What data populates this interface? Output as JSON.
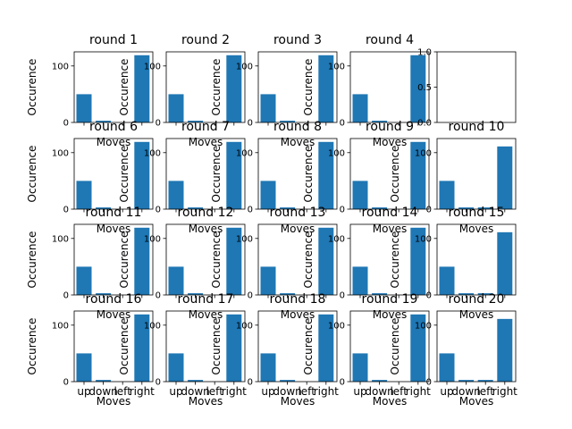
{
  "chart_data": {
    "type": "bar",
    "layout": {
      "rows": 4,
      "cols": 5
    },
    "bar_color": "#1f77b4",
    "ylim": [
      0,
      125
    ],
    "yticks": [
      0,
      100
    ],
    "categories": [
      "up",
      "down",
      "left",
      "right"
    ],
    "xlabel": "Moves",
    "ylabel": "Occurence",
    "panels": [
      {
        "title": "round 1",
        "values": [
          50,
          3,
          0,
          119
        ]
      },
      {
        "title": "round 2",
        "values": [
          50,
          3,
          0,
          119
        ]
      },
      {
        "title": "round 3",
        "values": [
          50,
          3,
          0,
          119
        ]
      },
      {
        "title": "round 4",
        "values": [
          50,
          3,
          0,
          119
        ]
      },
      {
        "title": "",
        "empty": true,
        "ylim": [
          0,
          1
        ],
        "yticks": [
          "0.0",
          "0.5",
          "1.0"
        ]
      },
      {
        "title": "round 6",
        "values": [
          50,
          3,
          0,
          119
        ]
      },
      {
        "title": "round 7",
        "values": [
          50,
          3,
          0,
          119
        ]
      },
      {
        "title": "round 8",
        "values": [
          50,
          3,
          0,
          119
        ]
      },
      {
        "title": "round 9",
        "values": [
          50,
          3,
          0,
          119
        ]
      },
      {
        "title": "round 10",
        "values": [
          50,
          3,
          3,
          111
        ]
      },
      {
        "title": "round 11",
        "values": [
          50,
          3,
          0,
          119
        ]
      },
      {
        "title": "round 12",
        "values": [
          50,
          3,
          0,
          119
        ]
      },
      {
        "title": "round 13",
        "values": [
          50,
          3,
          0,
          119
        ]
      },
      {
        "title": "round 14",
        "values": [
          50,
          3,
          0,
          119
        ]
      },
      {
        "title": "round 15",
        "values": [
          50,
          3,
          3,
          111
        ]
      },
      {
        "title": "round 16",
        "values": [
          50,
          3,
          0,
          119
        ]
      },
      {
        "title": "round 17",
        "values": [
          50,
          3,
          0,
          119
        ]
      },
      {
        "title": "round 18",
        "values": [
          50,
          3,
          0,
          119
        ]
      },
      {
        "title": "round 19",
        "values": [
          50,
          3,
          0,
          119
        ]
      },
      {
        "title": "round 20",
        "values": [
          50,
          3,
          3,
          111
        ]
      }
    ]
  }
}
